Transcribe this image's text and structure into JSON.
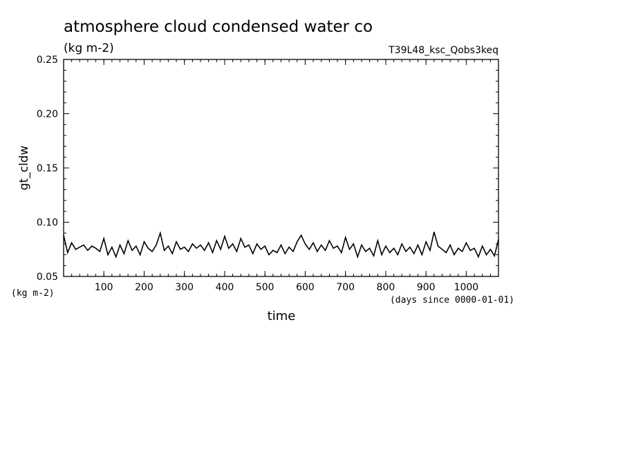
{
  "chart_data": {
    "type": "line",
    "title": "atmosphere cloud condensed water co",
    "title_units": "(kg m-2)",
    "run_label": "T39L48_ksc_Qobs3keq",
    "ylabel": "gt_cldw",
    "y_units": "(kg m-2)",
    "xlabel": "time",
    "x_units": "(days since 0000-01-01)",
    "xlim": [
      0,
      1080
    ],
    "ylim": [
      0.05,
      0.25
    ],
    "x_ticks": [
      100,
      200,
      300,
      400,
      500,
      600,
      700,
      800,
      900,
      1000
    ],
    "y_ticks": [
      "0.05",
      "0.10",
      "0.15",
      "0.20",
      "0.25"
    ],
    "grid": false,
    "line_color": "#000000",
    "series": [
      {
        "x": [
          0,
          10,
          20,
          30,
          40,
          50,
          60,
          70,
          80,
          90,
          100,
          110,
          120,
          130,
          140,
          150,
          160,
          170,
          180,
          190,
          200,
          210,
          220,
          230,
          240,
          250,
          260,
          270,
          280,
          290,
          300,
          310,
          320,
          330,
          340,
          350,
          360,
          370,
          380,
          390,
          400,
          410,
          420,
          430,
          440,
          450,
          460,
          470,
          480,
          490,
          500,
          510,
          520,
          530,
          540,
          550,
          560,
          570,
          580,
          590,
          600,
          610,
          620,
          630,
          640,
          650,
          660,
          670,
          680,
          690,
          700,
          710,
          720,
          730,
          740,
          750,
          760,
          770,
          780,
          790,
          800,
          810,
          820,
          830,
          840,
          850,
          860,
          870,
          880,
          890,
          900,
          910,
          920,
          930,
          940,
          950,
          960,
          970,
          980,
          990,
          1000,
          1010,
          1020,
          1030,
          1040,
          1050,
          1060,
          1070,
          1080
        ],
        "values": [
          0.088,
          0.072,
          0.081,
          0.075,
          0.077,
          0.079,
          0.074,
          0.078,
          0.076,
          0.073,
          0.085,
          0.07,
          0.077,
          0.068,
          0.079,
          0.071,
          0.083,
          0.074,
          0.078,
          0.07,
          0.082,
          0.076,
          0.073,
          0.079,
          0.09,
          0.074,
          0.078,
          0.071,
          0.082,
          0.075,
          0.077,
          0.073,
          0.08,
          0.076,
          0.079,
          0.074,
          0.081,
          0.072,
          0.083,
          0.075,
          0.087,
          0.076,
          0.08,
          0.073,
          0.085,
          0.077,
          0.079,
          0.071,
          0.08,
          0.075,
          0.078,
          0.07,
          0.074,
          0.072,
          0.079,
          0.071,
          0.077,
          0.073,
          0.082,
          0.088,
          0.08,
          0.075,
          0.081,
          0.073,
          0.079,
          0.074,
          0.083,
          0.076,
          0.078,
          0.072,
          0.086,
          0.075,
          0.08,
          0.068,
          0.079,
          0.073,
          0.076,
          0.069,
          0.083,
          0.07,
          0.078,
          0.072,
          0.076,
          0.07,
          0.08,
          0.073,
          0.077,
          0.071,
          0.079,
          0.07,
          0.082,
          0.074,
          0.091,
          0.078,
          0.075,
          0.072,
          0.079,
          0.07,
          0.076,
          0.073,
          0.081,
          0.074,
          0.076,
          0.068,
          0.078,
          0.07,
          0.075,
          0.069,
          0.084
        ]
      }
    ]
  }
}
